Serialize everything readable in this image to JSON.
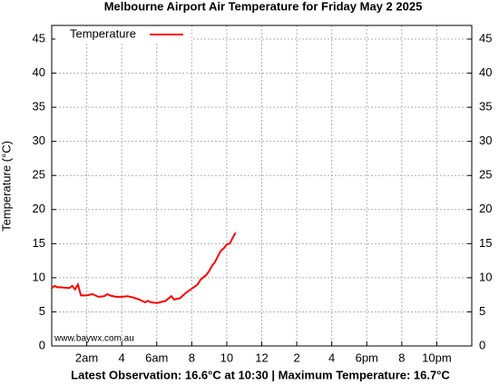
{
  "chart_data": {
    "type": "line",
    "title": "Melbourne Airport Air Temperature  for Friday May 2 2025",
    "y_label": "Temperature (°C)",
    "footer": "Latest Observation: 16.6°C at 10:30 | Maximum Temperature: 16.7°C",
    "watermark": "www.baywx.com.au",
    "x": [
      0.0,
      0.17,
      0.33,
      0.5,
      1.0,
      1.17,
      1.33,
      1.5,
      1.67,
      2.0,
      2.33,
      2.67,
      3.0,
      3.17,
      3.33,
      3.67,
      4.0,
      4.33,
      4.67,
      5.0,
      5.33,
      5.5,
      5.67,
      6.0,
      6.5,
      6.83,
      7.0,
      7.33,
      7.67,
      8.0,
      8.33,
      8.5,
      8.83,
      9.0,
      9.17,
      9.33,
      9.5,
      9.67,
      9.83,
      10.0,
      10.17,
      10.33,
      10.5
    ],
    "series": [
      {
        "name": "Temperature",
        "color": "#ff0000",
        "values": [
          8.5,
          8.8,
          8.6,
          8.6,
          8.5,
          8.8,
          8.3,
          9.0,
          7.4,
          7.4,
          7.6,
          7.2,
          7.3,
          7.6,
          7.4,
          7.2,
          7.2,
          7.3,
          7.1,
          6.8,
          6.4,
          6.6,
          6.4,
          6.3,
          6.6,
          7.3,
          6.8,
          7.0,
          7.8,
          8.4,
          9.0,
          9.7,
          10.4,
          11.0,
          11.8,
          12.3,
          13.2,
          14.0,
          14.3,
          14.9,
          15.0,
          15.8,
          16.6
        ]
      }
    ],
    "xlim": [
      0,
      24
    ],
    "xticks": [
      {
        "value": 2,
        "label": "2am"
      },
      4,
      {
        "value": 6,
        "label": "6am"
      },
      8,
      10,
      12,
      {
        "value": 14,
        "label": "2"
      },
      {
        "value": 16,
        "label": "4"
      },
      {
        "value": 18,
        "label": "6pm"
      },
      {
        "value": 20,
        "label": "8"
      },
      {
        "value": 22,
        "label": "10pm"
      }
    ],
    "ylim": [
      0,
      47
    ],
    "yticks": [
      0,
      5,
      10,
      15,
      20,
      25,
      30,
      35,
      40,
      45
    ],
    "grid": true,
    "legend": "top-left"
  }
}
